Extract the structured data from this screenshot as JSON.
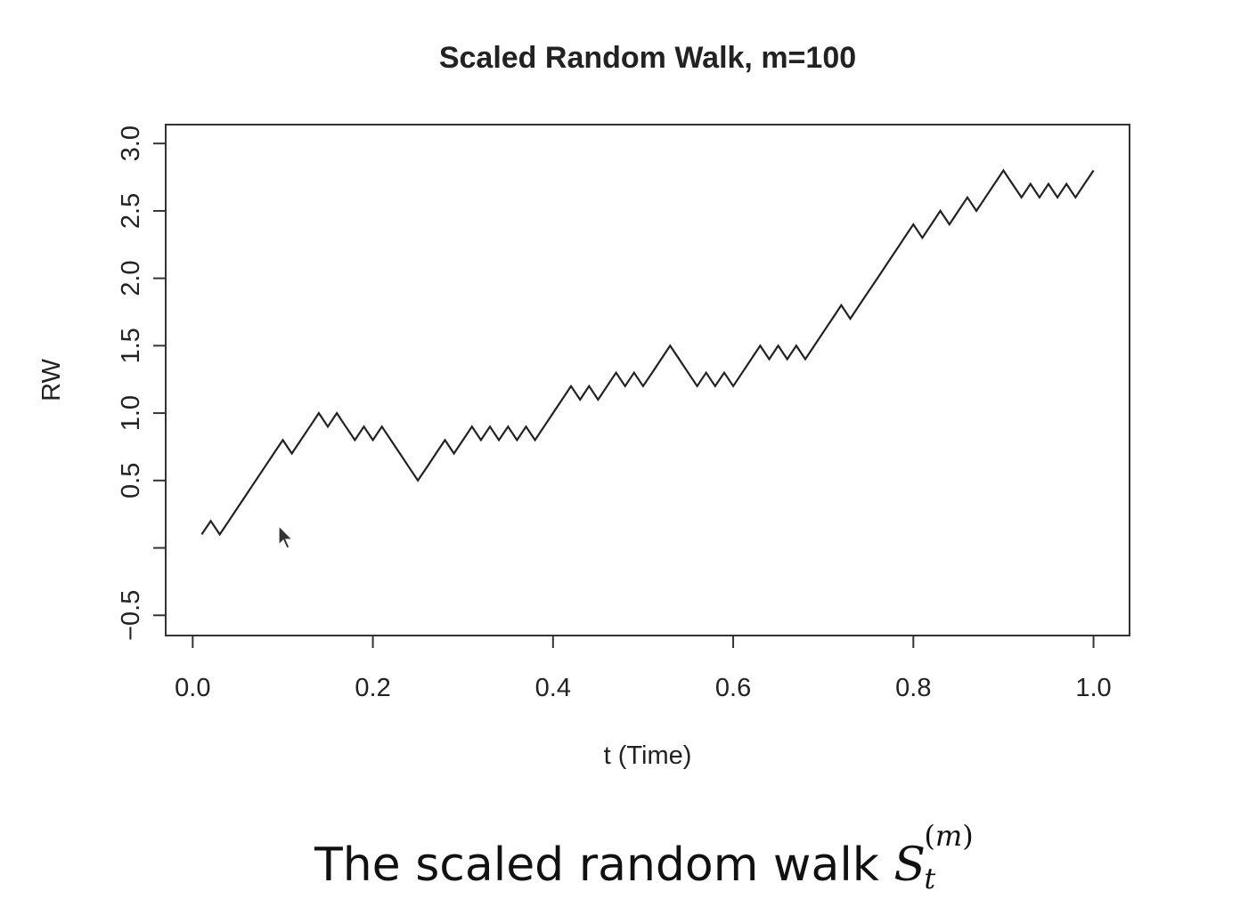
{
  "chart_data": {
    "type": "line",
    "title": "Scaled Random Walk, m=100",
    "xlabel": "t (Time)",
    "ylabel": "RW",
    "xlim": [
      -0.03,
      1.04
    ],
    "ylim": [
      -0.65,
      3.14
    ],
    "x_ticks": [
      0.0,
      0.2,
      0.4,
      0.6,
      0.8,
      1.0
    ],
    "x_tick_labels": [
      "0.0",
      "0.2",
      "0.4",
      "0.6",
      "0.8",
      "1.0"
    ],
    "y_ticks": [
      -0.5,
      0.0,
      0.5,
      1.0,
      1.5,
      2.0,
      2.5,
      3.0
    ],
    "y_tick_labels": [
      "−0.5",
      "",
      "0.5",
      "1.0",
      "1.5",
      "2.0",
      "2.5",
      "3.0"
    ],
    "grid": false,
    "series": [
      {
        "color": "#222222",
        "x": [
          0.01,
          0.02,
          0.03,
          0.04,
          0.05,
          0.06,
          0.07,
          0.08,
          0.09,
          0.1,
          0.11,
          0.12,
          0.13,
          0.14,
          0.15,
          0.16,
          0.17,
          0.18,
          0.19,
          0.2,
          0.21,
          0.22,
          0.23,
          0.24,
          0.25,
          0.26,
          0.27,
          0.28,
          0.29,
          0.3,
          0.31,
          0.32,
          0.33,
          0.34,
          0.35,
          0.36,
          0.37,
          0.38,
          0.39,
          0.4,
          0.41,
          0.42,
          0.43,
          0.44,
          0.45,
          0.46,
          0.47,
          0.48,
          0.49,
          0.5,
          0.51,
          0.52,
          0.53,
          0.54,
          0.55,
          0.56,
          0.57,
          0.58,
          0.59,
          0.6,
          0.61,
          0.62,
          0.63,
          0.64,
          0.65,
          0.66,
          0.67,
          0.68,
          0.69,
          0.7,
          0.71,
          0.72,
          0.73,
          0.74,
          0.75,
          0.76,
          0.77,
          0.78,
          0.79,
          0.8,
          0.81,
          0.82,
          0.83,
          0.84,
          0.85,
          0.86,
          0.87,
          0.88,
          0.89,
          0.9,
          0.91,
          0.92,
          0.93,
          0.94,
          0.95,
          0.96,
          0.97,
          0.98,
          0.99,
          1.0
        ],
        "y": [
          0.1,
          0.2,
          0.1,
          0.2,
          0.3,
          0.4,
          0.5,
          0.6,
          0.7,
          0.8,
          0.7,
          0.8,
          0.9,
          1.0,
          0.9,
          1.0,
          0.9,
          0.8,
          0.9,
          0.8,
          0.9,
          0.8,
          0.7,
          0.6,
          0.5,
          0.6,
          0.7,
          0.8,
          0.7,
          0.8,
          0.9,
          0.8,
          0.9,
          0.8,
          0.9,
          0.8,
          0.9,
          0.8,
          0.9,
          1.0,
          1.1,
          1.2,
          1.1,
          1.2,
          1.1,
          1.2,
          1.3,
          1.2,
          1.3,
          1.2,
          1.3,
          1.4,
          1.5,
          1.4,
          1.3,
          1.2,
          1.3,
          1.2,
          1.3,
          1.2,
          1.3,
          1.4,
          1.5,
          1.4,
          1.5,
          1.4,
          1.5,
          1.4,
          1.5,
          1.6,
          1.7,
          1.8,
          1.7,
          1.8,
          1.9,
          2.0,
          2.1,
          2.2,
          2.3,
          2.4,
          2.3,
          2.4,
          2.5,
          2.4,
          2.5,
          2.6,
          2.5,
          2.6,
          2.7,
          2.8,
          2.7,
          2.6,
          2.7,
          2.6,
          2.7,
          2.6,
          2.7,
          2.6,
          2.7,
          2.8
        ]
      }
    ]
  },
  "caption": {
    "prefix": "The scaled random walk ",
    "symbol": "S",
    "subscript": "t",
    "superscript_var": "m"
  }
}
